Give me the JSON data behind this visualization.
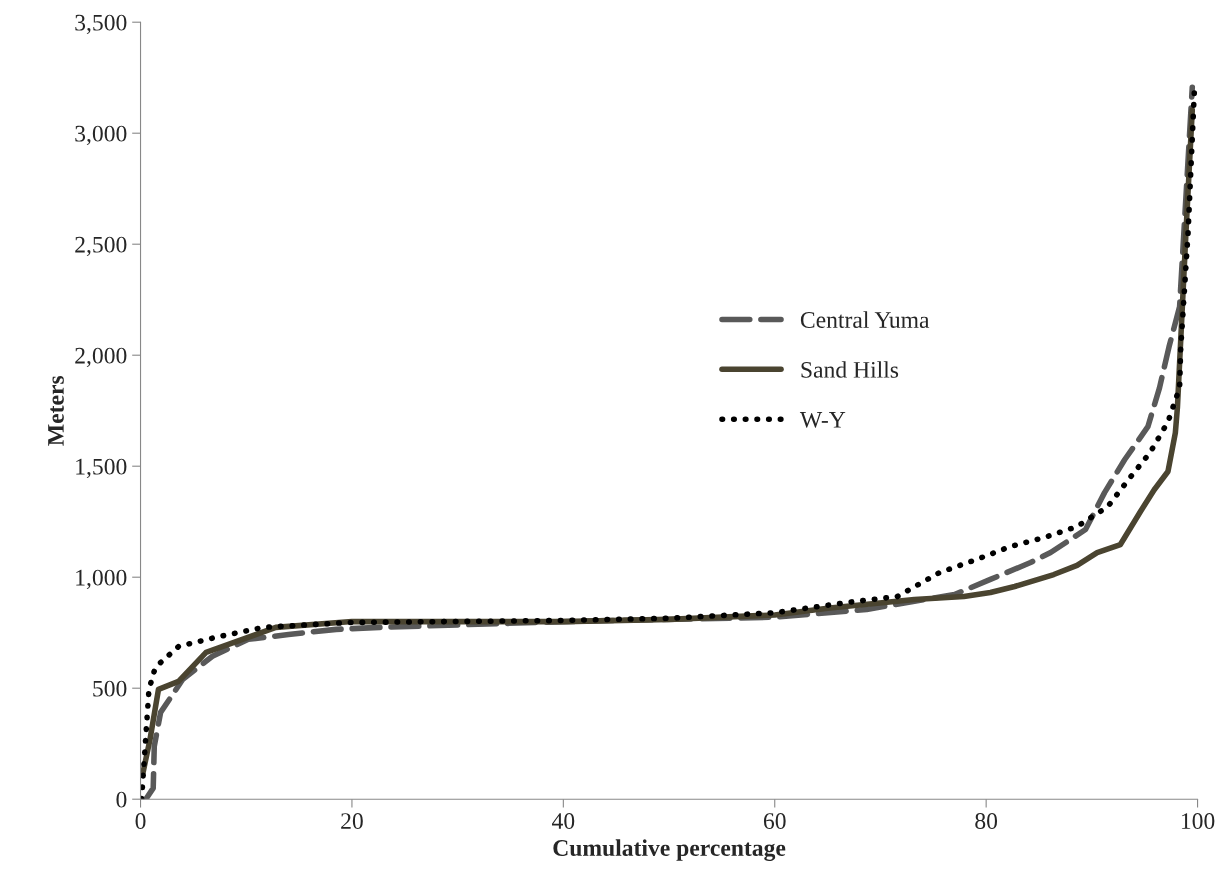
{
  "chart_data": {
    "type": "line",
    "xlabel": "Cumulative percentage",
    "ylabel": "Meters",
    "xlim": [
      0,
      100
    ],
    "xticks": [
      0,
      20,
      40,
      60,
      80,
      100
    ],
    "ylim": [
      0,
      3500
    ],
    "yticks": [
      {
        "value": 0,
        "label": "0"
      },
      {
        "value": 500,
        "label": "500"
      },
      {
        "value": 1000,
        "label": "1,000"
      },
      {
        "value": 1500,
        "label": "1,500"
      },
      {
        "value": 2000,
        "label": "2,000"
      },
      {
        "value": 2500,
        "label": "2,500"
      },
      {
        "value": 3000,
        "label": "3,000"
      },
      {
        "value": 3500,
        "label": "3,500"
      }
    ],
    "grid": false,
    "legend": "center right",
    "series": [
      {
        "name": "Central Yuma",
        "color": "#595959",
        "line_style": "dashed",
        "x": [
          0.5,
          1.2,
          1.3,
          1.9,
          4.0,
          6.8,
          10.2,
          14.0,
          18.5,
          22.6,
          40,
          60,
          68.7,
          77.0,
          80.4,
          84.2,
          86.1,
          89.4,
          91.2,
          93.1,
          95.3,
          96.4,
          97.3,
          98.3,
          99.5
        ],
        "values": [
          0,
          50,
          238,
          391,
          540,
          644,
          720,
          742,
          765,
          774,
          800,
          820,
          855,
          922,
          990,
          1066,
          1111,
          1215,
          1381,
          1529,
          1678,
          1853,
          2038,
          2218,
          3207
        ]
      },
      {
        "name": "Sand Hills",
        "color": "#4a4430",
        "line_style": "solid",
        "x": [
          0.2,
          0.9,
          1.7,
          3.6,
          6.2,
          12.8,
          20,
          40,
          50,
          60,
          65,
          73.2,
          77.9,
          80.4,
          82.7,
          86.4,
          88.6,
          90.5,
          92.7,
          94.6,
          95.9,
          97.2,
          97.9,
          98.1,
          98.9,
          99.5
        ],
        "values": [
          112,
          270,
          495,
          531,
          661,
          774,
          800,
          800,
          810,
          830,
          860,
          900,
          913,
          931,
          958,
          1012,
          1053,
          1111,
          1147,
          1296,
          1394,
          1476,
          1651,
          1768,
          2550,
          3104
        ]
      },
      {
        "name": "W-Y",
        "color": "#000000",
        "line_style": "dotted",
        "x": [
          0.1,
          0.8,
          1.4,
          3.6,
          7.1,
          11.6,
          19.7,
          40,
          50,
          60,
          66.8,
          71.6,
          75.6,
          79.1,
          82.3,
          85.5,
          88.6,
          91.5,
          93.6,
          95.5,
          97.2,
          98.3,
          98.4,
          99.1,
          99.7
        ],
        "values": [
          0,
          495,
          594,
          688,
          729,
          774,
          796,
          805,
          815,
          840,
          886,
          913,
          1021,
          1080,
          1138,
          1179,
          1228,
          1318,
          1448,
          1561,
          1700,
          1853,
          2024,
          2550,
          3194
        ]
      }
    ]
  }
}
